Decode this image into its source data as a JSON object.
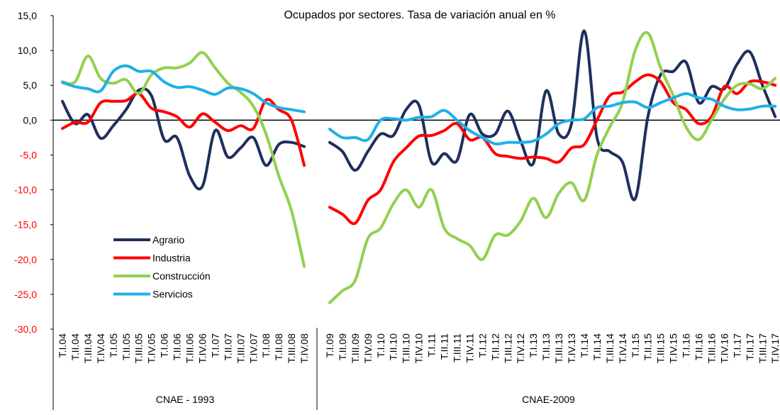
{
  "chart_data": {
    "type": "line",
    "title": "Ocupados por sectores. Tasa de variación anual en %",
    "categories": [
      "T.I.04",
      "T.II.04",
      "T.III.04",
      "T.IV.04",
      "T.I.05",
      "T.II.05",
      "T.III.05",
      "T.IV.05",
      "T.I.06",
      "T.II.06",
      "T.III.06",
      "T.IV.06",
      "T.I.07",
      "T.II.07",
      "T.III.07",
      "T.IV.07",
      "T.I.08",
      "T.II.08",
      "T.III.08",
      "T.IV.08",
      null,
      "T.I.09",
      "T.II.09",
      "T.III.09",
      "T.IV.09",
      "T.I.10",
      "T.II.10",
      "T.III.10",
      "T.IV.10",
      "T.I.11",
      "T.II.11",
      "T.III.11",
      "T.IV.11",
      "T.I.12",
      "T.II.12",
      "T.III.12",
      "T.IV.12",
      "T.I.13",
      "T.II.13",
      "T.III.13",
      "T.IV.13",
      "T.I.14",
      "T.II.14",
      "T.III.14",
      "T.IV.14",
      "T.I.15",
      "T.II.15",
      "T.III.15",
      "T.IV.15",
      "T.I.16",
      "T.II.16",
      "T.III.16",
      "T.IV.16",
      "T.I.17",
      "T.II.17",
      "T.III.17",
      "T.IV.17"
    ],
    "groups": [
      "CNAE - 1993",
      "CNAE-2009"
    ],
    "series": [
      {
        "name": "Agrario",
        "color": "#1f2f5e",
        "values": [
          2.7,
          -0.5,
          0.8,
          -2.6,
          -0.8,
          1.5,
          4.3,
          3.5,
          -2.8,
          -2.5,
          -8,
          -9.5,
          -1.5,
          -5.3,
          -4,
          -2.5,
          -6.5,
          -3.5,
          -3.2,
          -3.8,
          null,
          -3.2,
          -4.5,
          -7.2,
          -4.5,
          -2,
          -2.2,
          1.5,
          2.2,
          -6,
          -4.8,
          -5.8,
          0.8,
          -2,
          -2,
          1.3,
          -3,
          -6.2,
          4.2,
          -2,
          -0.5,
          12.8,
          -2.5,
          -4.5,
          -6,
          -11.3,
          0.5,
          6.5,
          7,
          8.3,
          2.5,
          4.8,
          4.5,
          8,
          9.8,
          5,
          0.5
        ]
      },
      {
        "name": "Industria",
        "color": "#ff0000",
        "values": [
          -1.2,
          -0.3,
          -0.3,
          2.5,
          2.7,
          2.8,
          3.8,
          1.7,
          1.2,
          0.5,
          -1,
          0.9,
          -0.3,
          -1.5,
          -0.8,
          -1.2,
          2.9,
          1.5,
          0,
          -6.5,
          null,
          -12.5,
          -13.5,
          -14.8,
          -11.5,
          -10,
          -6,
          -4,
          -2.3,
          -2.2,
          -1.5,
          -0.5,
          -2.8,
          -2.5,
          -4.8,
          -5.2,
          -5.5,
          -5.3,
          -5.5,
          -6,
          -4,
          -3.5,
          0,
          3.5,
          4,
          5.5,
          6.5,
          5.5,
          2.5,
          1.5,
          -0.5,
          0.5,
          4.8,
          3.8,
          5.5,
          5.5,
          5
        ]
      },
      {
        "name": "Construcción",
        "color": "#92d050",
        "values": [
          5.5,
          5.5,
          9.2,
          6,
          5.3,
          5.8,
          3.8,
          6.5,
          7.5,
          7.5,
          8.2,
          9.7,
          7.5,
          5.3,
          4,
          2,
          -2,
          -8,
          -13,
          -21,
          null,
          -26.2,
          -24.5,
          -23,
          -17,
          -15.5,
          -12,
          -10,
          -12.5,
          -10,
          -15.5,
          -17,
          -18,
          -20,
          -16.5,
          -16.5,
          -14.5,
          -11.2,
          -14,
          -10.5,
          -9,
          -11.5,
          -5,
          -1,
          2.5,
          10,
          12.5,
          7.5,
          3.5,
          -1,
          -2.8,
          0,
          3,
          5,
          5.2,
          4.5,
          6
        ]
      },
      {
        "name": "Servicios",
        "color": "#1fb0e8",
        "values": [
          5.4,
          4.8,
          4.5,
          4.2,
          7,
          7.8,
          7,
          7,
          5.5,
          4.7,
          4.8,
          4.3,
          3.7,
          4.6,
          4.5,
          3.8,
          2.5,
          1.8,
          1.5,
          1.2,
          null,
          -1.3,
          -2.5,
          -2.5,
          -2.8,
          0,
          0.2,
          0,
          0.4,
          0.5,
          1.4,
          0,
          -1.5,
          -2.5,
          -3.4,
          -3.2,
          -3.2,
          -3,
          -2,
          -0.5,
          0,
          0.2,
          1.8,
          2,
          2.5,
          2.6,
          1.8,
          2.5,
          3.2,
          3.8,
          3.2,
          3,
          2,
          1.5,
          1.6,
          2,
          2
        ]
      }
    ],
    "ylim": [
      -30,
      15
    ],
    "yticks": [
      {
        "value": -30,
        "label": "-30,0"
      },
      {
        "value": -25,
        "label": "-25,0"
      },
      {
        "value": -20,
        "label": "-20,0"
      },
      {
        "value": -15,
        "label": "-15,0"
      },
      {
        "value": -10,
        "label": "-10,0"
      },
      {
        "value": -5,
        "label": "-5,0"
      },
      {
        "value": 0,
        "label": "0,0"
      },
      {
        "value": 5,
        "label": "5,0"
      },
      {
        "value": 10,
        "label": "10,0"
      },
      {
        "value": 15,
        "label": "15,0"
      }
    ],
    "negative_tick_color": "#ff0000",
    "legend": "lower left"
  }
}
